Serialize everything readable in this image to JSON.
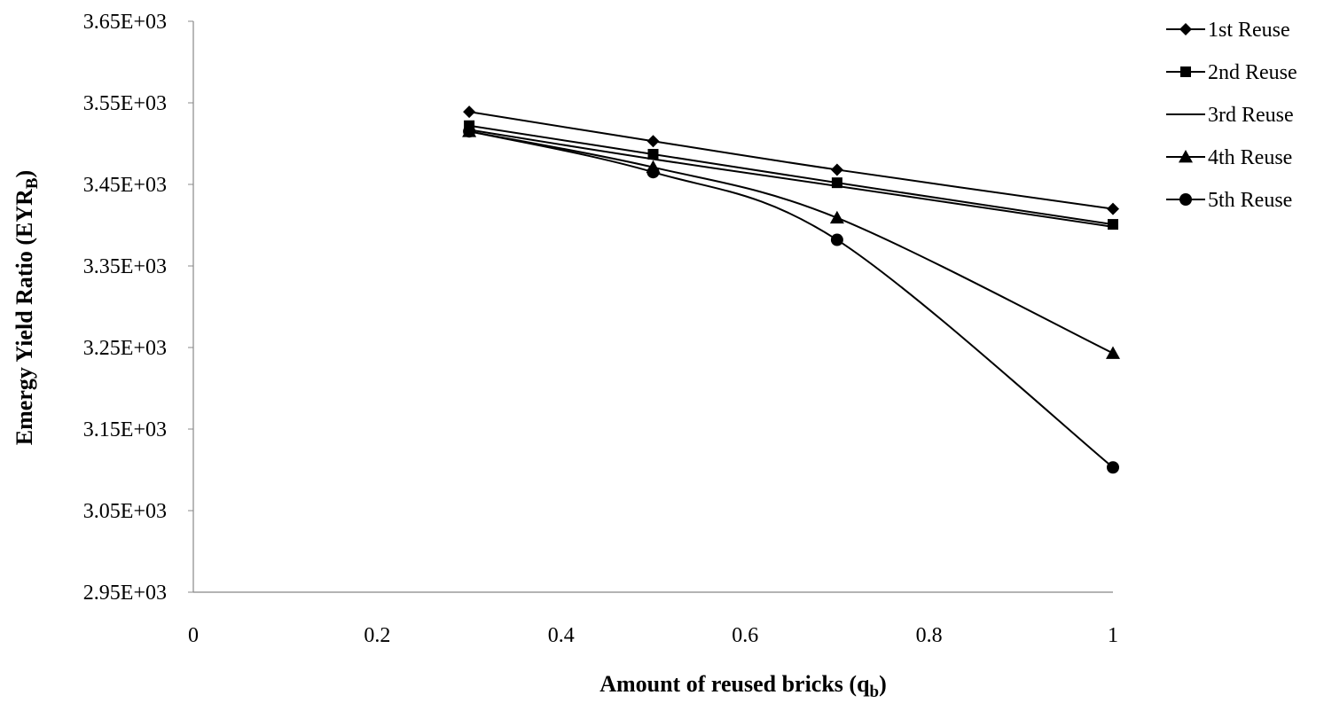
{
  "chart_data": {
    "type": "line",
    "smoothed": true,
    "xlabel": "Amount of reused bricks (q",
    "xlabel_sub": "b",
    "xlabel_end": ")",
    "ylabel": "Emergy Yield Ratio (EYR",
    "ylabel_sub": "B",
    "ylabel_end": ")",
    "xlim": [
      0,
      1
    ],
    "ylim": [
      2950,
      3650
    ],
    "x_ticks": [
      0,
      0.2,
      0.4,
      0.6,
      0.8,
      1
    ],
    "x_tick_labels": [
      "0",
      "0.2",
      "0.4",
      "0.6",
      "0.8",
      "1"
    ],
    "y_ticks": [
      2950,
      3050,
      3150,
      3250,
      3350,
      3450,
      3550,
      3650
    ],
    "y_tick_labels": [
      "2.95E+03",
      "3.05E+03",
      "3.15E+03",
      "3.25E+03",
      "3.35E+03",
      "3.45E+03",
      "3.55E+03",
      "3.65E+03"
    ],
    "grid": false,
    "legend_position": "right",
    "line_color": "#000000",
    "x": [
      0.3,
      0.5,
      0.7,
      1.0
    ],
    "series": [
      {
        "name": "1st Reuse",
        "marker": "diamond",
        "values": [
          3539,
          3503,
          3468,
          3420
        ]
      },
      {
        "name": "2nd Reuse",
        "marker": "square",
        "values": [
          3522,
          3487,
          3452,
          3401
        ]
      },
      {
        "name": "3rd Reuse",
        "marker": "none",
        "values": [
          3517,
          3481,
          3448,
          3398
        ]
      },
      {
        "name": "4th Reuse",
        "marker": "triangle",
        "values": [
          3515,
          3471,
          3409,
          3243
        ]
      },
      {
        "name": "5th Reuse",
        "marker": "circle",
        "values": [
          3515,
          3465,
          3382,
          3103
        ]
      }
    ]
  }
}
